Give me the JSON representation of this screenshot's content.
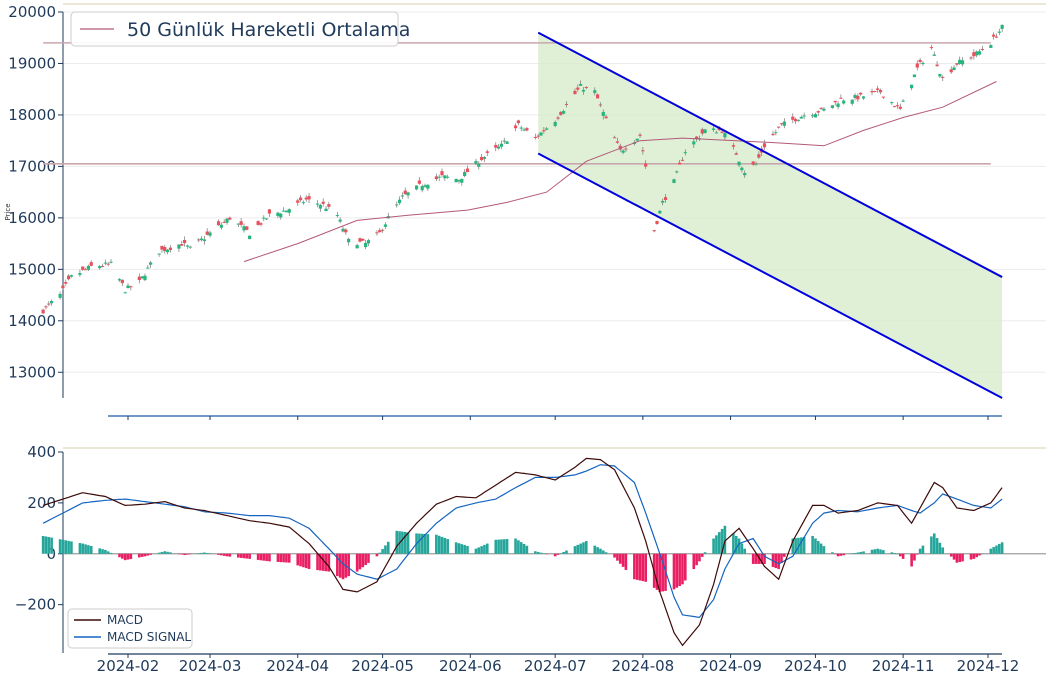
{
  "chart_data": [
    {
      "type": "candlestick",
      "ylabel": "Price",
      "ylim": [
        12500,
        20000
      ],
      "yticks": [
        13000,
        14000,
        15000,
        16000,
        17000,
        18000,
        19000,
        20000
      ],
      "legend": {
        "position": "top-left",
        "entries": [
          {
            "label": "50 Günlük Hareketli Ortalama",
            "color": "#b5587a"
          }
        ]
      },
      "grid": "horizontal",
      "colors": {
        "up": "#26b57a",
        "down": "#e8505b",
        "ma": "#b5587a",
        "channel": "#0000dd",
        "channel_fill": "#d4ebca",
        "level": "#c9a6ae"
      },
      "anchors": [
        [
          "2024-01-02",
          14200
        ],
        [
          "2024-01-08",
          14500
        ],
        [
          "2024-01-12",
          14850
        ],
        [
          "2024-01-19",
          15050
        ],
        [
          "2024-01-26",
          15100
        ],
        [
          "2024-01-31",
          14600
        ],
        [
          "2024-02-05",
          14750
        ],
        [
          "2024-02-12",
          15350
        ],
        [
          "2024-02-20",
          15500
        ],
        [
          "2024-02-23",
          15400
        ],
        [
          "2024-03-01",
          15700
        ],
        [
          "2024-03-08",
          16000
        ],
        [
          "2024-03-15",
          15700
        ],
        [
          "2024-03-22",
          16050
        ],
        [
          "2024-03-28",
          16150
        ],
        [
          "2024-04-04",
          16350
        ],
        [
          "2024-04-10",
          16250
        ],
        [
          "2024-04-15",
          16050
        ],
        [
          "2024-04-19",
          15550
        ],
        [
          "2024-04-25",
          15500
        ],
        [
          "2024-04-30",
          15700
        ],
        [
          "2024-05-03",
          16000
        ],
        [
          "2024-05-08",
          16400
        ],
        [
          "2024-05-15",
          16650
        ],
        [
          "2024-05-22",
          16800
        ],
        [
          "2024-05-28",
          16750
        ],
        [
          "2024-06-05",
          17150
        ],
        [
          "2024-06-12",
          17400
        ],
        [
          "2024-06-18",
          17800
        ],
        [
          "2024-06-24",
          17550
        ],
        [
          "2024-07-01",
          17900
        ],
        [
          "2024-07-10",
          18550
        ],
        [
          "2024-07-15",
          18450
        ],
        [
          "2024-07-19",
          17900
        ],
        [
          "2024-07-24",
          17300
        ],
        [
          "2024-07-31",
          17600
        ],
        [
          "2024-08-02",
          17000
        ],
        [
          "2024-08-05",
          15750
        ],
        [
          "2024-08-08",
          16300
        ],
        [
          "2024-08-12",
          16700
        ],
        [
          "2024-08-16",
          17300
        ],
        [
          "2024-08-23",
          17700
        ],
        [
          "2024-08-29",
          17700
        ],
        [
          "2024-09-03",
          17250
        ],
        [
          "2024-09-06",
          16900
        ],
        [
          "2024-09-10",
          17050
        ],
        [
          "2024-09-13",
          17400
        ],
        [
          "2024-09-19",
          17800
        ],
        [
          "2024-09-27",
          18000
        ],
        [
          "2024-10-04",
          18100
        ],
        [
          "2024-10-10",
          18300
        ],
        [
          "2024-10-17",
          18350
        ],
        [
          "2024-10-24",
          18450
        ],
        [
          "2024-10-31",
          18100
        ],
        [
          "2024-11-06",
          18900
        ],
        [
          "2024-11-11",
          19300
        ],
        [
          "2024-11-15",
          18700
        ],
        [
          "2024-11-20",
          19000
        ],
        [
          "2024-11-26",
          19150
        ],
        [
          "2024-12-02",
          19400
        ],
        [
          "2024-12-06",
          19700
        ]
      ],
      "moving_average_50": [
        [
          "2024-03-13",
          15150
        ],
        [
          "2024-04-01",
          15500
        ],
        [
          "2024-04-22",
          15950
        ],
        [
          "2024-05-10",
          16050
        ],
        [
          "2024-05-31",
          16150
        ],
        [
          "2024-06-14",
          16300
        ],
        [
          "2024-06-28",
          16500
        ],
        [
          "2024-07-12",
          17100
        ],
        [
          "2024-07-31",
          17500
        ],
        [
          "2024-08-15",
          17550
        ],
        [
          "2024-09-03",
          17500
        ],
        [
          "2024-09-20",
          17450
        ],
        [
          "2024-10-04",
          17400
        ],
        [
          "2024-10-18",
          17700
        ],
        [
          "2024-11-01",
          17950
        ],
        [
          "2024-11-15",
          18150
        ],
        [
          "2024-12-04",
          18650
        ]
      ],
      "horizontal_levels": [
        {
          "y": 19400,
          "from": "2024-01-02",
          "to": "2024-12-02"
        },
        {
          "y": 17050,
          "from": "2024-01-02",
          "to": "2024-12-02"
        }
      ],
      "channel": {
        "upper": [
          [
            "2024-06-25",
            19600
          ],
          [
            "2024-12-06",
            14850
          ]
        ],
        "lower": [
          [
            "2024-06-25",
            17250
          ],
          [
            "2024-12-06",
            12500
          ]
        ]
      }
    },
    {
      "type": "line+bar",
      "ylim": [
        -390,
        400
      ],
      "yticks": [
        -200,
        0,
        200,
        400
      ],
      "xticks": [
        "2024-02",
        "2024-03",
        "2024-04",
        "2024-05",
        "2024-06",
        "2024-07",
        "2024-08",
        "2024-09",
        "2024-10",
        "2024-11",
        "2024-12"
      ],
      "legend": {
        "position": "bottom-left"
      },
      "colors": {
        "hist_pos": "#26a69a",
        "hist_neg": "#e91e63",
        "zero": "#9e9e9e",
        "axis": "#1f3a5a"
      },
      "series": [
        {
          "name": "MACD",
          "color": "#3d0a0a",
          "points": [
            [
              "2024-01-02",
              190
            ],
            [
              "2024-01-09",
              215
            ],
            [
              "2024-01-16",
              240
            ],
            [
              "2024-01-24",
              225
            ],
            [
              "2024-01-31",
              190
            ],
            [
              "2024-02-07",
              195
            ],
            [
              "2024-02-14",
              205
            ],
            [
              "2024-02-21",
              180
            ],
            [
              "2024-02-28",
              170
            ],
            [
              "2024-03-07",
              150
            ],
            [
              "2024-03-15",
              130
            ],
            [
              "2024-03-22",
              120
            ],
            [
              "2024-03-29",
              105
            ],
            [
              "2024-04-05",
              40
            ],
            [
              "2024-04-12",
              -50
            ],
            [
              "2024-04-17",
              -140
            ],
            [
              "2024-04-22",
              -150
            ],
            [
              "2024-04-29",
              -110
            ],
            [
              "2024-05-06",
              30
            ],
            [
              "2024-05-13",
              120
            ],
            [
              "2024-05-20",
              195
            ],
            [
              "2024-05-27",
              225
            ],
            [
              "2024-06-03",
              220
            ],
            [
              "2024-06-10",
              270
            ],
            [
              "2024-06-17",
              320
            ],
            [
              "2024-06-24",
              310
            ],
            [
              "2024-07-01",
              290
            ],
            [
              "2024-07-08",
              340
            ],
            [
              "2024-07-12",
              375
            ],
            [
              "2024-07-17",
              370
            ],
            [
              "2024-07-22",
              330
            ],
            [
              "2024-07-29",
              180
            ],
            [
              "2024-08-02",
              50
            ],
            [
              "2024-08-07",
              -150
            ],
            [
              "2024-08-12",
              -310
            ],
            [
              "2024-08-15",
              -360
            ],
            [
              "2024-08-21",
              -280
            ],
            [
              "2024-08-26",
              -120
            ],
            [
              "2024-08-30",
              50
            ],
            [
              "2024-09-04",
              100
            ],
            [
              "2024-09-09",
              20
            ],
            [
              "2024-09-13",
              -50
            ],
            [
              "2024-09-18",
              -100
            ],
            [
              "2024-09-23",
              50
            ],
            [
              "2024-09-30",
              190
            ],
            [
              "2024-10-04",
              190
            ],
            [
              "2024-10-09",
              160
            ],
            [
              "2024-10-16",
              170
            ],
            [
              "2024-10-23",
              200
            ],
            [
              "2024-10-30",
              190
            ],
            [
              "2024-11-04",
              120
            ],
            [
              "2024-11-07",
              180
            ],
            [
              "2024-11-12",
              280
            ],
            [
              "2024-11-15",
              260
            ],
            [
              "2024-11-20",
              180
            ],
            [
              "2024-11-26",
              170
            ],
            [
              "2024-12-02",
              200
            ],
            [
              "2024-12-06",
              260
            ]
          ]
        },
        {
          "name": "MACD SIGNAL",
          "color": "#1565c0",
          "points": [
            [
              "2024-01-02",
              120
            ],
            [
              "2024-01-09",
              160
            ],
            [
              "2024-01-16",
              200
            ],
            [
              "2024-01-24",
              210
            ],
            [
              "2024-01-31",
              215
            ],
            [
              "2024-02-07",
              205
            ],
            [
              "2024-02-14",
              195
            ],
            [
              "2024-02-21",
              185
            ],
            [
              "2024-02-28",
              165
            ],
            [
              "2024-03-07",
              160
            ],
            [
              "2024-03-15",
              150
            ],
            [
              "2024-03-22",
              150
            ],
            [
              "2024-03-29",
              140
            ],
            [
              "2024-04-05",
              100
            ],
            [
              "2024-04-12",
              20
            ],
            [
              "2024-04-17",
              -40
            ],
            [
              "2024-04-22",
              -80
            ],
            [
              "2024-04-29",
              -100
            ],
            [
              "2024-05-06",
              -60
            ],
            [
              "2024-05-13",
              40
            ],
            [
              "2024-05-20",
              120
            ],
            [
              "2024-05-27",
              180
            ],
            [
              "2024-06-03",
              200
            ],
            [
              "2024-06-10",
              215
            ],
            [
              "2024-06-17",
              260
            ],
            [
              "2024-06-24",
              300
            ],
            [
              "2024-07-01",
              300
            ],
            [
              "2024-07-08",
              310
            ],
            [
              "2024-07-12",
              325
            ],
            [
              "2024-07-17",
              350
            ],
            [
              "2024-07-22",
              345
            ],
            [
              "2024-07-29",
              280
            ],
            [
              "2024-08-02",
              160
            ],
            [
              "2024-08-07",
              0
            ],
            [
              "2024-08-12",
              -170
            ],
            [
              "2024-08-15",
              -240
            ],
            [
              "2024-08-21",
              -250
            ],
            [
              "2024-08-26",
              -180
            ],
            [
              "2024-08-30",
              -60
            ],
            [
              "2024-09-04",
              40
            ],
            [
              "2024-09-09",
              60
            ],
            [
              "2024-09-13",
              -10
            ],
            [
              "2024-09-18",
              -40
            ],
            [
              "2024-09-23",
              -10
            ],
            [
              "2024-09-30",
              120
            ],
            [
              "2024-10-04",
              160
            ],
            [
              "2024-10-09",
              170
            ],
            [
              "2024-10-16",
              165
            ],
            [
              "2024-10-23",
              180
            ],
            [
              "2024-10-30",
              190
            ],
            [
              "2024-11-04",
              170
            ],
            [
              "2024-11-07",
              160
            ],
            [
              "2024-11-12",
              200
            ],
            [
              "2024-11-15",
              235
            ],
            [
              "2024-11-20",
              215
            ],
            [
              "2024-11-26",
              190
            ],
            [
              "2024-12-02",
              180
            ],
            [
              "2024-12-06",
              215
            ]
          ]
        }
      ]
    }
  ]
}
